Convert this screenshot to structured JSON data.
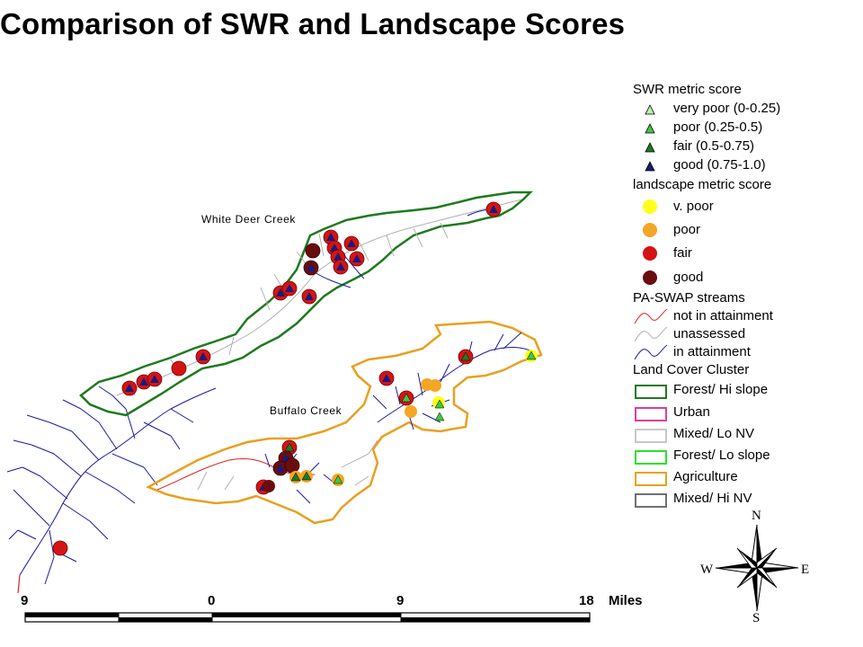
{
  "title": "Comparison of SWR and Landscape Scores",
  "map_labels": {
    "white_deer_creek": "White Deer Creek",
    "buffalo_creek": "Buffalo Creek"
  },
  "legend": {
    "swr_heading": "SWR metric score",
    "swr_items": [
      {
        "label": "very poor (0-0.25)",
        "color": "#b9f0a8"
      },
      {
        "label": "poor (0.25-0.5)",
        "color": "#3ec83e"
      },
      {
        "label": "fair (0.5-0.75)",
        "color": "#1f7a1f"
      },
      {
        "label": "good (0.75-1.0)",
        "color": "#1a1a7a"
      }
    ],
    "landscape_heading": "landscape metric score",
    "landscape_items": [
      {
        "label": "v. poor",
        "color": "#ffff1a"
      },
      {
        "label": "poor",
        "color": "#f5a623"
      },
      {
        "label": "fair",
        "color": "#d41414"
      },
      {
        "label": "good",
        "color": "#6a0d0d"
      }
    ],
    "streams_heading": "PA-SWAP streams",
    "stream_items": [
      {
        "label": "not in attainment",
        "color": "#e02020"
      },
      {
        "label": "unassessed",
        "color": "#b0b0b0"
      },
      {
        "label": "in attainment",
        "color": "#1a1aa0"
      }
    ],
    "landcover_heading": "Land Cover Cluster",
    "landcover_items": [
      {
        "label": "Forest/ Hi slope",
        "color": "#1e7a1e"
      },
      {
        "label": "Urban",
        "color": "#d8409a"
      },
      {
        "label": "Mixed/ Lo NV",
        "color": "#c8c8c8"
      },
      {
        "label": "Forest/ Lo slope",
        "color": "#2ee02e"
      },
      {
        "label": "Agriculture",
        "color": "#e8a020"
      },
      {
        "label": "Mixed/ Hi NV",
        "color": "#707070"
      }
    ]
  },
  "scale_bar": {
    "ticks": [
      "9",
      "0",
      "9",
      "18"
    ],
    "unit": "Miles"
  },
  "compass": {
    "n": "N",
    "s": "S",
    "e": "E",
    "w": "W"
  }
}
